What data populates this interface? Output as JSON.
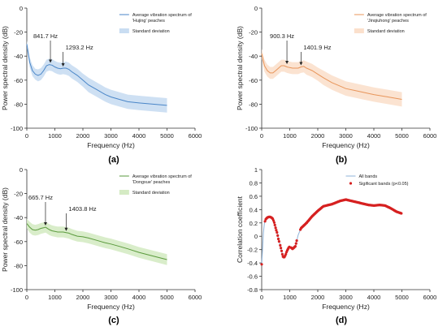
{
  "chart_data": [
    {
      "panel_label": "(a)",
      "type": "line",
      "xlabel": "Frequency (Hz)",
      "ylabel": "Power spectral density (dB)",
      "xlim": [
        0,
        6000
      ],
      "ylim": [
        -100,
        0
      ],
      "xticks": [
        0,
        1000,
        2000,
        3000,
        4000,
        5000,
        6000
      ],
      "yticks": [
        0,
        -20,
        -40,
        -60,
        -80,
        -100
      ],
      "color": "#4a86c8",
      "band_color": "#c9ddf2",
      "legend_position": "top-right",
      "series": [
        {
          "name": "Average vibration spectrum of 'Hujing' peaches",
          "x": [
            0,
            100,
            200,
            300,
            400,
            500,
            600,
            700,
            800,
            900,
            1000,
            1100,
            1200,
            1300,
            1400,
            1500,
            1600,
            1800,
            2000,
            2200,
            2500,
            2800,
            3000,
            3300,
            3600,
            4000,
            4500,
            5000
          ],
          "y": [
            -30,
            -45,
            -52,
            -55,
            -56,
            -55,
            -52,
            -48,
            -47,
            -47.5,
            -49,
            -50,
            -50.5,
            -50,
            -50,
            -51,
            -53,
            -56,
            -60,
            -64,
            -68,
            -72,
            -74,
            -76,
            -78,
            -79,
            -80,
            -81
          ]
        }
      ],
      "band": {
        "name": "Standard deviation",
        "width": [
          3,
          4,
          4.5,
          4.5,
          5,
          5,
          5,
          5,
          5,
          5,
          5,
          5,
          5,
          5,
          5.5,
          5.5,
          5.5,
          5.5,
          5.5,
          6,
          6,
          6,
          6,
          6,
          6,
          6,
          6,
          6
        ]
      },
      "annotations": [
        {
          "text": "841.7 Hz",
          "x": 841.7,
          "y": -47
        },
        {
          "text": "1293.2 Hz",
          "x": 1293.2,
          "y": -50
        }
      ]
    },
    {
      "panel_label": "(b)",
      "type": "line",
      "xlabel": "Frequency (Hz)",
      "ylabel": "Power spectral density (dB)",
      "xlim": [
        0,
        6000
      ],
      "ylim": [
        -100,
        0
      ],
      "xticks": [
        0,
        1000,
        2000,
        3000,
        4000,
        5000,
        6000
      ],
      "yticks": [
        0,
        -20,
        -40,
        -60,
        -80,
        -100
      ],
      "color": "#e8955a",
      "band_color": "#fbe0cc",
      "legend_position": "top-right",
      "series": [
        {
          "name": "Average vibration spectrum of 'Jinqiuhong' peaches",
          "x": [
            0,
            100,
            200,
            300,
            400,
            500,
            600,
            700,
            800,
            900,
            1000,
            1100,
            1200,
            1300,
            1400,
            1500,
            1600,
            1800,
            2000,
            2200,
            2500,
            2800,
            3000,
            3300,
            3600,
            4000,
            4500,
            5000
          ],
          "y": [
            -38,
            -48,
            -52,
            -54,
            -54,
            -52,
            -50,
            -48,
            -48,
            -49,
            -49.5,
            -50,
            -50,
            -50,
            -49,
            -48.5,
            -50,
            -52,
            -55,
            -58,
            -62,
            -65,
            -67,
            -68.5,
            -70,
            -72,
            -74,
            -76
          ]
        }
      ],
      "band": {
        "name": "Standard deviation",
        "width": [
          4,
          5,
          5,
          5,
          5,
          5,
          5,
          5,
          5,
          5,
          5,
          5,
          5,
          5,
          5,
          5,
          5.5,
          5.5,
          5.5,
          6,
          6,
          6,
          6,
          6,
          6,
          6,
          6,
          6
        ]
      },
      "annotations": [
        {
          "text": "900.3 Hz",
          "x": 900.3,
          "y": -48
        },
        {
          "text": "1401.9 Hz",
          "x": 1401.9,
          "y": -49
        }
      ]
    },
    {
      "panel_label": "(c)",
      "type": "line",
      "xlabel": "Frequency (Hz)",
      "ylabel": "Power spectral density (dB)",
      "xlim": [
        0,
        6000
      ],
      "ylim": [
        -100,
        0
      ],
      "xticks": [
        0,
        1000,
        2000,
        3000,
        4000,
        5000,
        6000
      ],
      "yticks": [
        0,
        -20,
        -40,
        -60,
        -80,
        -100
      ],
      "color": "#5a9a3c",
      "band_color": "#d5ebc4",
      "legend_position": "top-right",
      "series": [
        {
          "name": "Average vibration spectrum of 'Dongxue' peaches",
          "x": [
            0,
            100,
            200,
            300,
            400,
            500,
            600,
            665.7,
            700,
            800,
            900,
            1000,
            1100,
            1200,
            1300,
            1403.8,
            1500,
            1600,
            1800,
            2000,
            2200,
            2500,
            2800,
            3000,
            3300,
            3600,
            4000,
            4500,
            5000
          ],
          "y": [
            -45,
            -48,
            -50,
            -50.5,
            -50,
            -49,
            -48.5,
            -48,
            -48.5,
            -50,
            -51,
            -51.5,
            -52,
            -52,
            -52,
            -52.5,
            -53,
            -54,
            -55.5,
            -56,
            -57,
            -59,
            -61,
            -62,
            -64,
            -66,
            -69,
            -72,
            -75
          ]
        }
      ],
      "band": {
        "name": "Standard deviation",
        "width": [
          4,
          4.5,
          4.5,
          4.5,
          4.5,
          4.5,
          4.5,
          4.5,
          4.5,
          4.5,
          4.5,
          4.5,
          4.5,
          4.5,
          4.5,
          4.5,
          4.5,
          4.5,
          4.5,
          4.5,
          4.5,
          4.5,
          4.5,
          4.5,
          4.5,
          4.5,
          4.5,
          4.5,
          4.5
        ]
      },
      "annotations": [
        {
          "text": "665.7 Hz",
          "x": 665.7,
          "y": -48
        },
        {
          "text": "1403.8 Hz",
          "x": 1403.8,
          "y": -52.5
        }
      ]
    },
    {
      "panel_label": "(d)",
      "type": "line",
      "xlabel": "Frequency (Hz)",
      "ylabel": "Correlation coefficient",
      "xlim": [
        0,
        6000
      ],
      "ylim": [
        -0.8,
        1
      ],
      "xticks": [
        0,
        1000,
        2000,
        3000,
        4000,
        5000,
        6000
      ],
      "yticks": [
        1,
        0.8,
        0.6,
        0.4,
        0.2,
        0,
        -0.2,
        -0.4,
        -0.6,
        -0.8
      ],
      "line_color": "#8fb3d9",
      "sig_color": "#d62020",
      "legend_position": "top-right",
      "legend": [
        "All bands",
        "Sigificant bands (p<0.05)"
      ],
      "series": [
        {
          "name": "All bands",
          "x": [
            0,
            30,
            60,
            100,
            150,
            200,
            250,
            300,
            350,
            400,
            450,
            500,
            550,
            600,
            650,
            700,
            750,
            800,
            850,
            900,
            950,
            1000,
            1050,
            1100,
            1200,
            1300,
            1400,
            1500,
            1600,
            1800,
            2000,
            2200,
            2500,
            2800,
            3000,
            3200,
            3500,
            3800,
            4000,
            4200,
            4400,
            4600,
            4800,
            5000
          ],
          "y": [
            -0.42,
            -0.2,
            0.05,
            0.2,
            0.26,
            0.28,
            0.29,
            0.29,
            0.28,
            0.26,
            0.2,
            0.12,
            0.05,
            -0.05,
            -0.12,
            -0.2,
            -0.3,
            -0.32,
            -0.28,
            -0.22,
            -0.18,
            -0.15,
            -0.17,
            -0.19,
            -0.15,
            0.02,
            0.12,
            0.16,
            0.2,
            0.3,
            0.38,
            0.45,
            0.48,
            0.53,
            0.55,
            0.53,
            0.5,
            0.47,
            0.46,
            0.47,
            0.46,
            0.42,
            0.37,
            0.34
          ]
        }
      ],
      "significant_ranges": [
        [
          0,
          20
        ],
        [
          120,
          620
        ],
        [
          660,
          1000
        ],
        [
          1050,
          1250
        ],
        [
          1380,
          5000
        ]
      ]
    }
  ]
}
